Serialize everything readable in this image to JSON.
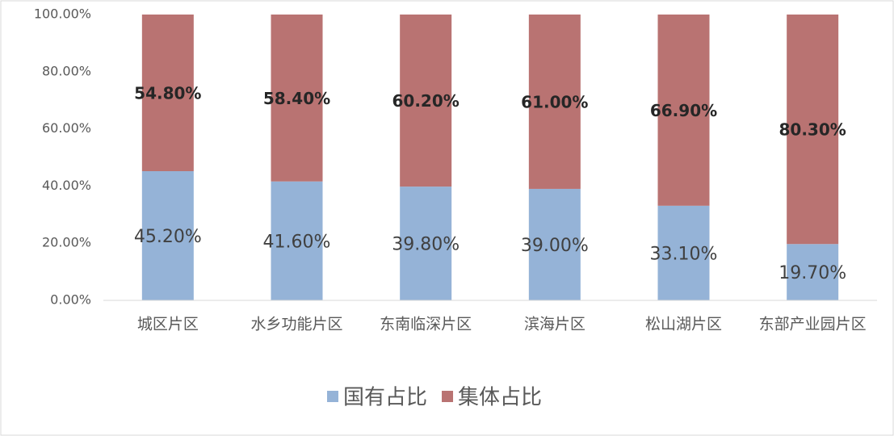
{
  "chart_data": {
    "type": "stacked_bar",
    "categories": [
      "城区片区",
      "水乡功能片区",
      "东南临深片区",
      "滨海片区",
      "松山湖片区",
      "东部产业园片区"
    ],
    "series": [
      {
        "name": "国有占比",
        "color": "#95b3d7",
        "values": [
          45.2,
          41.6,
          39.8,
          39.0,
          33.1,
          19.7
        ],
        "value_labels": [
          "45.20%",
          "41.60%",
          "39.80%",
          "39.00%",
          "33.10%",
          "19.70%"
        ]
      },
      {
        "name": "集体占比",
        "color": "#b97372",
        "values": [
          54.8,
          58.4,
          60.2,
          61.0,
          66.9,
          80.3
        ],
        "value_labels": [
          "54.80%",
          "58.40%",
          "60.20%",
          "61.00%",
          "66.90%",
          "80.30%"
        ]
      }
    ],
    "ylim": [
      0,
      100
    ],
    "yticks": [
      {
        "value": 0,
        "label": "0.00%"
      },
      {
        "value": 20,
        "label": "20.00%"
      },
      {
        "value": 40,
        "label": "40.00%"
      },
      {
        "value": 60,
        "label": "60.00%"
      },
      {
        "value": 80,
        "label": "80.00%"
      },
      {
        "value": 100,
        "label": "100.00%"
      }
    ],
    "grid": false,
    "legend": "bottom"
  }
}
